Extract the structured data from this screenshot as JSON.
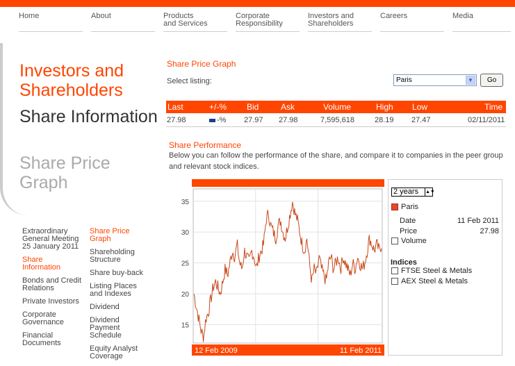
{
  "nav": [
    "Home",
    "About",
    "Products|and Services",
    "Corporate|Responsibility",
    "Investors and|Shareholders",
    "Careers",
    "Media"
  ],
  "headings": {
    "investors": "Investors and Shareholders",
    "share_info": "Share Information",
    "share_price_graph": "Share Price Graph"
  },
  "subnav_left": [
    "Extraordinary General Meeting 25 January 2011",
    "Share Information",
    "Bonds and Credit Relations",
    "Private Investors",
    "Corporate Governance",
    "Financial Documents"
  ],
  "subnav_right": [
    "Share Price Graph",
    "Shareholding Structure",
    "Share buy-back",
    "Listing Places and Indexes",
    "Dividend",
    "Dividend Payment Schedule",
    "Equity Analyst Coverage"
  ],
  "section_title": "Share Price Graph",
  "select_label": "Select listing:",
  "listing_value": "Paris",
  "go_label": "Go",
  "table": {
    "headers": [
      "Last",
      "+/-%",
      "Bid",
      "Ask",
      "Volume",
      "High",
      "Low",
      "Time"
    ],
    "row": [
      "27.98",
      "-%",
      "27.97",
      "27.98",
      "7,595,618",
      "28.19",
      "27.47",
      "02/11/2011"
    ]
  },
  "performance": {
    "title": "Share Performance",
    "description": "Below you can follow the performance of the share, and compare it to companies in the peer group and relevant stock indices."
  },
  "chart_data": {
    "type": "line",
    "x_start": "12 Feb 2009",
    "x_end": "11 Feb 2011",
    "yticks": [
      15,
      20,
      25,
      30,
      35
    ],
    "ylim": [
      12,
      37
    ],
    "series": [
      {
        "name": "Paris",
        "values": [
          20,
          18,
          16,
          14,
          13,
          16,
          17,
          19,
          21,
          22,
          21,
          20,
          22,
          24,
          23,
          25,
          27,
          26,
          28,
          25,
          24,
          27,
          26,
          25,
          27,
          26,
          24,
          26,
          27,
          28,
          32,
          33,
          31,
          30,
          29,
          31,
          32,
          30,
          29,
          31,
          33,
          35,
          33,
          32,
          30,
          28,
          27,
          29,
          25,
          22,
          24,
          23,
          26,
          24,
          23,
          22,
          25,
          26,
          24,
          25,
          26,
          24,
          26,
          25,
          24,
          23,
          25,
          24,
          26,
          25,
          24,
          25,
          27,
          29,
          28,
          27,
          28,
          27,
          28
        ]
      }
    ],
    "color": "#c8471a"
  },
  "side": {
    "range": "2 years",
    "series_label": "Paris",
    "date_label": "Date",
    "date_value": "11 Feb 2011",
    "price_label": "Price",
    "price_value": "27.98",
    "volume_label": "Volume",
    "indices_title": "Indices",
    "indices": [
      "FTSE Steel & Metals",
      "AEX Steel & Metals"
    ]
  }
}
